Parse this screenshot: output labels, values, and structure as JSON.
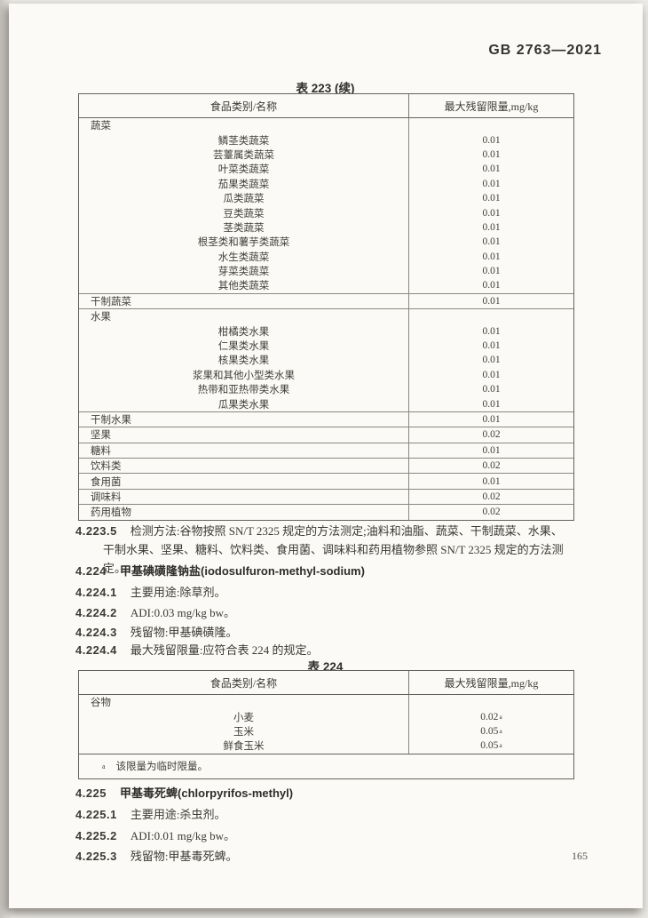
{
  "page": {
    "standard_code": "GB 2763—2021",
    "page_number": "165"
  },
  "table_223": {
    "title": "表 223 (续)",
    "columns": [
      "食品类别/名称",
      "最大残留限量,mg/kg"
    ],
    "sections": [
      {
        "group": "蔬菜",
        "value": "",
        "items": [
          {
            "name": "鳞茎类蔬菜",
            "value": "0.01"
          },
          {
            "name": "芸薹属类蔬菜",
            "value": "0.01"
          },
          {
            "name": "叶菜类蔬菜",
            "value": "0.01"
          },
          {
            "name": "茄果类蔬菜",
            "value": "0.01"
          },
          {
            "name": "瓜类蔬菜",
            "value": "0.01"
          },
          {
            "name": "豆类蔬菜",
            "value": "0.01"
          },
          {
            "name": "茎类蔬菜",
            "value": "0.01"
          },
          {
            "name": "根茎类和薯芋类蔬菜",
            "value": "0.01"
          },
          {
            "name": "水生类蔬菜",
            "value": "0.01"
          },
          {
            "name": "芽菜类蔬菜",
            "value": "0.01"
          },
          {
            "name": "其他类蔬菜",
            "value": "0.01"
          }
        ]
      },
      {
        "group": "干制蔬菜",
        "value": "0.01",
        "items": []
      },
      {
        "group": "水果",
        "value": "",
        "items": [
          {
            "name": "柑橘类水果",
            "value": "0.01"
          },
          {
            "name": "仁果类水果",
            "value": "0.01"
          },
          {
            "name": "核果类水果",
            "value": "0.01"
          },
          {
            "name": "浆果和其他小型类水果",
            "value": "0.01"
          },
          {
            "name": "热带和亚热带类水果",
            "value": "0.01"
          },
          {
            "name": "瓜果类水果",
            "value": "0.01"
          }
        ]
      },
      {
        "group": "干制水果",
        "value": "0.01",
        "items": []
      },
      {
        "group": "坚果",
        "value": "0.02",
        "items": []
      },
      {
        "group": "糖料",
        "value": "0.01",
        "items": []
      },
      {
        "group": "饮料类",
        "value": "0.02",
        "items": []
      },
      {
        "group": "食用菌",
        "value": "0.01",
        "items": []
      },
      {
        "group": "调味料",
        "value": "0.02",
        "items": []
      },
      {
        "group": "药用植物",
        "value": "0.02",
        "items": []
      }
    ]
  },
  "sections": {
    "s4_223_5": {
      "num": "4.223.5",
      "line1": "检测方法:谷物按照 SN/T 2325 规定的方法测定;油料和油脂、蔬菜、干制蔬菜、水果、",
      "line2": "干制水果、坚果、糖料、饮料类、食用菌、调味料和药用植物参照 SN/T 2325 规定的方法测定。"
    },
    "s4_224": {
      "num": "4.224",
      "text": "甲基碘磺隆钠盐(iodosulfuron-methyl-sodium)"
    },
    "s4_224_1": {
      "num": "4.224.1",
      "text": "主要用途:除草剂。"
    },
    "s4_224_2": {
      "num": "4.224.2",
      "text": "ADI:0.03 mg/kg bw。"
    },
    "s4_224_3": {
      "num": "4.224.3",
      "text": "残留物:甲基碘磺隆。"
    },
    "s4_224_4": {
      "num": "4.224.4",
      "text": "最大残留限量:应符合表 224 的规定。"
    },
    "s4_225": {
      "num": "4.225",
      "text": "甲基毒死蜱(chlorpyrifos-methyl)"
    },
    "s4_225_1": {
      "num": "4.225.1",
      "text": "主要用途:杀虫剂。"
    },
    "s4_225_2": {
      "num": "4.225.2",
      "text": "ADI:0.01 mg/kg bw。"
    },
    "s4_225_3": {
      "num": "4.225.3",
      "text": "残留物:甲基毒死蜱。"
    }
  },
  "table_224": {
    "title": "表 224",
    "columns": [
      "食品类别/名称",
      "最大残留限量,mg/kg"
    ],
    "sections": [
      {
        "group": "谷物",
        "value": "",
        "items": [
          {
            "name": "小麦",
            "value": "0.02",
            "sup": "a"
          },
          {
            "name": "玉米",
            "value": "0.05",
            "sup": "a"
          },
          {
            "name": "鲜食玉米",
            "value": "0.05",
            "sup": "a"
          }
        ]
      }
    ],
    "footnote": {
      "marker": "a",
      "text": "该限量为临时限量。"
    }
  }
}
